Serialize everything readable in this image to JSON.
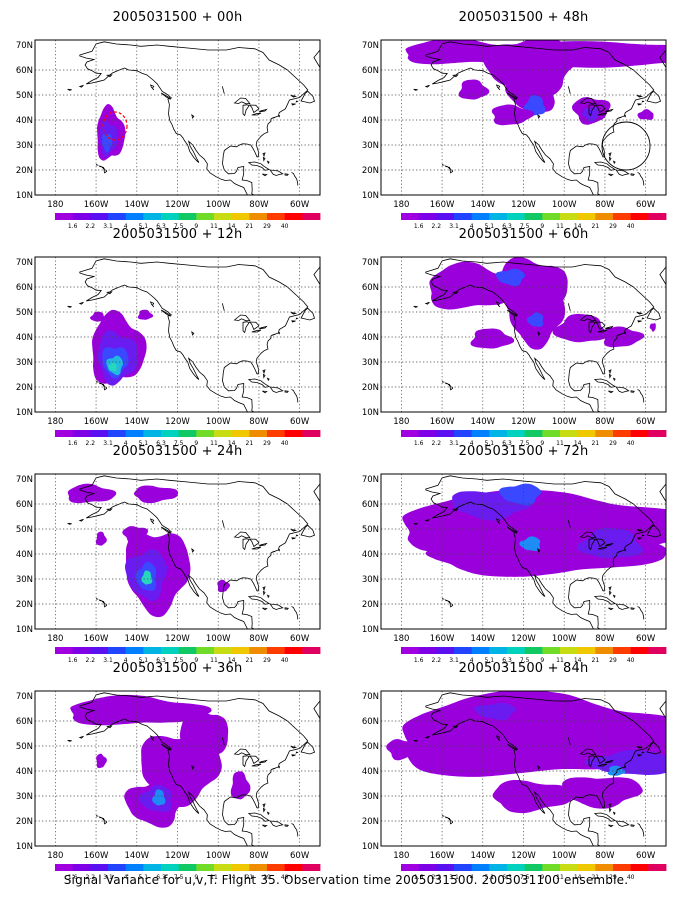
{
  "footer": "Signal Variance for u,v,T. Flight 35. Observation time 2005031500. 2005031100 ensemble.",
  "axes": {
    "lat_labels": [
      "70N",
      "60N",
      "50N",
      "40N",
      "30N",
      "20N",
      "10N"
    ],
    "lon_labels": [
      "180",
      "160W",
      "140W",
      "120W",
      "100W",
      "80W",
      "60W"
    ]
  },
  "colorbar": {
    "labels": [
      "1.6",
      "2.2",
      "3.1",
      "4",
      "5.1",
      "6.3",
      "7.5",
      "9",
      "11",
      "14",
      "21",
      "29",
      "40"
    ],
    "colors": [
      "#a000e0",
      "#7d00e6",
      "#5a10f0",
      "#2244ff",
      "#0080ff",
      "#00b4e6",
      "#00d2be",
      "#10c864",
      "#70dc28",
      "#c8dc14",
      "#f0c800",
      "#f08c00",
      "#ff3c00",
      "#ff0000",
      "#e00060"
    ]
  },
  "panels": [
    {
      "title": "2005031500 + 00h"
    },
    {
      "title": "2005031500 + 48h"
    },
    {
      "title": "2005031500 + 12h"
    },
    {
      "title": "2005031500 + 60h"
    },
    {
      "title": "2005031500 + 24h"
    },
    {
      "title": "2005031500 + 72h"
    },
    {
      "title": "2005031500 + 36h"
    },
    {
      "title": "2005031500 + 84h"
    }
  ]
}
